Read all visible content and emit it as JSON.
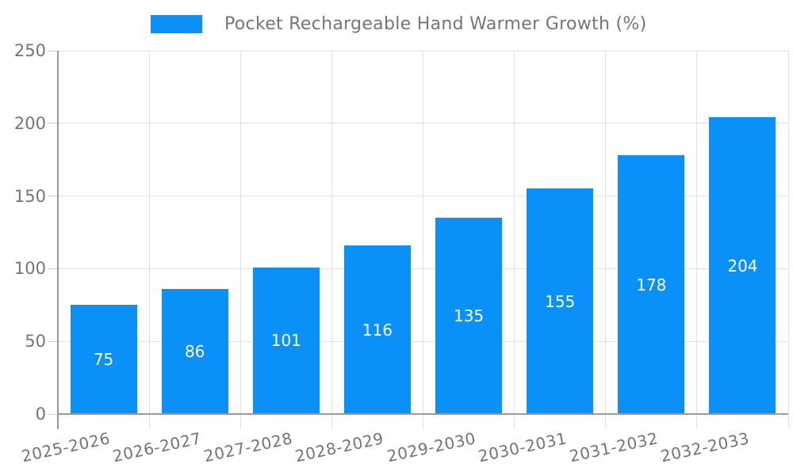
{
  "chart_data": {
    "type": "bar",
    "title": "Pocket Rechargeable Hand Warmer Growth (%)",
    "legend": {
      "label": "Pocket Rechargeable Hand Warmer Growth (%)",
      "position": "top"
    },
    "categories": [
      "2025-2026",
      "2026-2027",
      "2027-2028",
      "2028-2029",
      "2029-2030",
      "2030-2031",
      "2031-2032",
      "2032-2033"
    ],
    "values": [
      75,
      86,
      101,
      116,
      135,
      155,
      178,
      204
    ],
    "xlabel": "",
    "ylabel": "",
    "ylim": [
      0,
      250
    ],
    "yticks": [
      0,
      50,
      100,
      150,
      200,
      250
    ],
    "grid": "on",
    "bar_label_position": "inside-center",
    "colors": {
      "bar": "#0a90f9",
      "bar_label": "#ffffff",
      "axis": "#999999",
      "grid": "#e0e0e0",
      "tick": "#cccccc",
      "text": "#757575",
      "background": "#ffffff"
    }
  }
}
